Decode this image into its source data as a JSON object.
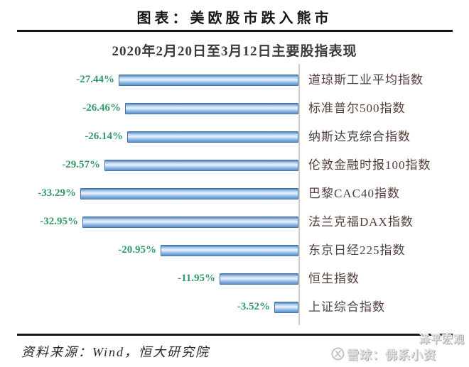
{
  "header": {
    "title": "图表：美欧股市跌入熊市",
    "subtitle": "2020年2月20日至3月12日主要股指表现"
  },
  "chart_data": {
    "type": "bar",
    "orientation": "horizontal",
    "title": "2020年2月20日至3月12日主要股指表现",
    "categories": [
      "道琼斯工业平均指数",
      "标准普尔500指数",
      "纳斯达克综合指数",
      "伦敦金融时报100指数",
      "巴黎CAC40指数",
      "法兰克福DAX指数",
      "东京日经225指数",
      "恒生指数",
      "上证综合指数"
    ],
    "values": [
      -27.44,
      -26.46,
      -26.14,
      -29.57,
      -33.29,
      -32.95,
      -20.95,
      -11.95,
      -3.52
    ],
    "unit": "%",
    "xlim": [
      -35,
      0
    ],
    "bars_aligned_to_zero_axis": true,
    "grid": false,
    "legend": false,
    "colors": {
      "bar_fill": "#86afe0",
      "bar_border": "#4273ae",
      "value_label": "#339966",
      "category_label": "#52403a",
      "axis_line": "#cfcfcf"
    }
  },
  "footer": {
    "source": "资料来源：Wind，恒大研究院"
  },
  "watermark": {
    "upper": "泽平宏观",
    "lower": "雪球：佛系小资",
    "logo": "snowball-logo",
    "color": "#c8c8c8"
  }
}
